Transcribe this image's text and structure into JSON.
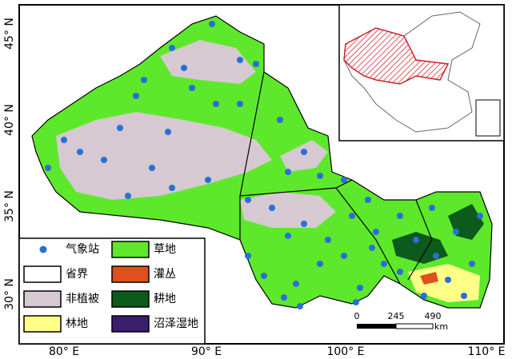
{
  "map": {
    "lon_labels": [
      "80° E",
      "90° E",
      "100° E",
      "110° E"
    ],
    "lat_labels": [
      "45° N",
      "40° N",
      "35° N",
      "30° N"
    ],
    "legend": [
      {
        "label": "气象站",
        "symbol": "dot",
        "color": "#2a6fd8"
      },
      {
        "label": "省界",
        "symbol": "box",
        "color": "#ffffff"
      },
      {
        "label": "非植被",
        "symbol": "box",
        "color": "#d6c9d1"
      },
      {
        "label": "林地",
        "symbol": "box",
        "color": "#ffff88"
      },
      {
        "label": "草地",
        "symbol": "box",
        "color": "#5ee82c"
      },
      {
        "label": "灌丛",
        "symbol": "box",
        "color": "#e0501c"
      },
      {
        "label": "耕地",
        "symbol": "box",
        "color": "#0c5a1c"
      },
      {
        "label": "沼泽湿地",
        "symbol": "box",
        "color": "#3b1d6e"
      }
    ],
    "scale_bar": {
      "labels": [
        "0",
        "245",
        "490"
      ],
      "unit": "km"
    }
  }
}
